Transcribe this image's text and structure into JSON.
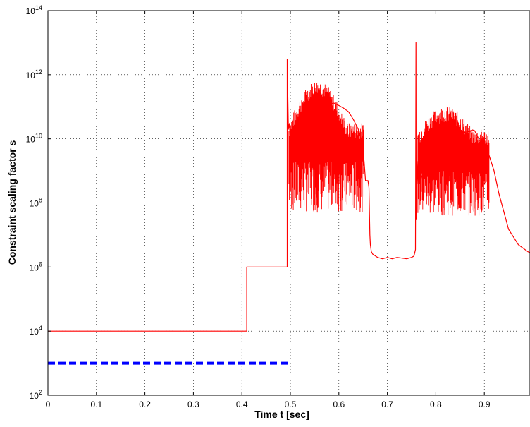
{
  "chart_data": {
    "type": "line",
    "title": "",
    "xlabel": "Time t [sec]",
    "ylabel": "Constraint scaling factor s",
    "xlim": [
      0,
      1
    ],
    "ylim": [
      100,
      100000000000000
    ],
    "yscale": "log",
    "grid": true,
    "legend": "none",
    "x_ticks": [
      {
        "value": 0,
        "label": "0"
      },
      {
        "value": 0.1,
        "label": "0.1"
      },
      {
        "value": 0.2,
        "label": "0.2"
      },
      {
        "value": 0.3,
        "label": "0.3"
      },
      {
        "value": 0.4,
        "label": "0.4"
      },
      {
        "value": 0.5,
        "label": "0.5"
      },
      {
        "value": 0.6,
        "label": "0.6"
      },
      {
        "value": 0.7,
        "label": "0.7"
      },
      {
        "value": 0.8,
        "label": "0.8"
      },
      {
        "value": 0.9,
        "label": "0.9"
      }
    ],
    "y_ticks": [
      {
        "value": 100,
        "base": "10",
        "exp": "2"
      },
      {
        "value": 10000,
        "base": "10",
        "exp": "4"
      },
      {
        "value": 1000000,
        "base": "10",
        "exp": "6"
      },
      {
        "value": 100000000,
        "base": "10",
        "exp": "8"
      },
      {
        "value": 10000000000,
        "base": "10",
        "exp": "10"
      },
      {
        "value": 1000000000000,
        "base": "10",
        "exp": "12"
      },
      {
        "value": 100000000000000,
        "base": "10",
        "exp": "14"
      }
    ],
    "series": [
      {
        "color": "#ff0000",
        "style": "solid",
        "x": [
          0,
          0.41,
          0.41,
          0.4935,
          0.4935,
          0.496,
          0.498,
          0.5,
          0.505,
          0.51,
          0.52,
          0.53,
          0.54,
          0.55,
          0.56,
          0.57,
          0.58,
          0.59,
          0.6,
          0.61,
          0.62,
          0.63,
          0.64,
          0.648,
          0.652,
          0.655,
          0.66,
          0.662,
          0.664,
          0.665,
          0.667,
          0.67,
          0.68,
          0.69,
          0.7,
          0.71,
          0.72,
          0.73,
          0.74,
          0.75,
          0.755,
          0.758,
          0.759,
          0.7595,
          0.761,
          0.763,
          0.77,
          0.78,
          0.79,
          0.8,
          0.81,
          0.82,
          0.83,
          0.84,
          0.85,
          0.86,
          0.87,
          0.875,
          0.88,
          0.89,
          0.9,
          0.91,
          0.92,
          0.93,
          0.95,
          0.97,
          0.99,
          1.0
        ],
        "y": [
          10000,
          10000,
          1000000,
          1000000,
          3000000000000,
          20000000000,
          30000000000,
          8000000000,
          2000000000,
          6000000000,
          10000000000,
          30000000000,
          60000000000,
          80000000000,
          100000000000,
          100000000000,
          120000000000,
          130000000000,
          110000000000,
          90000000000,
          70000000000,
          40000000000,
          20000000000,
          7000000000,
          2000000000,
          500000000,
          500000000,
          300000000,
          10000000,
          5000000,
          3000000,
          2500000,
          2000000,
          1800000,
          2000000,
          1800000,
          2000000,
          1900000,
          1800000,
          2000000,
          2200000,
          3500000,
          10000000000000,
          30000000,
          2000000000,
          400000000,
          600000000,
          1500000000,
          4000000000,
          6000000000,
          10000000000,
          12000000000,
          13000000000,
          14000000000,
          15000000000,
          16000000000,
          17000000000,
          19000000000,
          18000000000,
          9000000000,
          5000000000,
          3000000000,
          1000000000,
          200000000,
          15000000,
          5000000,
          3000000,
          2600000
        ]
      },
      {
        "color": "#0000ff",
        "style": "dashed",
        "x": [
          0,
          0.5
        ],
        "y": [
          1000,
          1000
        ]
      }
    ]
  }
}
